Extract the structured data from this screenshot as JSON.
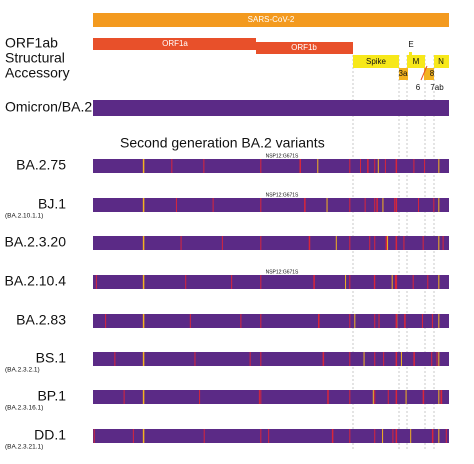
{
  "header": {
    "genome": "SARS-CoV-2"
  },
  "track_labels": [
    "ORF1ab",
    "Structural",
    "Accessory"
  ],
  "genes": {
    "orf1a": "ORF1a",
    "orf1b": "ORF1b",
    "spike": "Spike",
    "e": "E",
    "m": "M",
    "n": "N",
    "a3": "3a",
    "a6": "6",
    "a7": "7ab",
    "a8": "8"
  },
  "reference": "Omicron/BA.2",
  "section_title": "Second generation BA.2 variants",
  "rows": [
    {
      "label": "BA.2.75",
      "note": "NSP12:G671S"
    },
    {
      "label": "BJ.1",
      "sublabel": "(BA.2.10.1.1)",
      "note": "NSP12:G671S"
    },
    {
      "label": "BA.2.3.20"
    },
    {
      "label": "BA.2.10.4",
      "note": "NSP12:G671S"
    },
    {
      "label": "BA.2.83"
    },
    {
      "label": "BS.1",
      "sublabel": "(BA.2.3.2.1)"
    },
    {
      "label": "BP.1",
      "sublabel": "(BA.2.3.16.1)"
    },
    {
      "label": "DD.1",
      "sublabel": "(BA.2.3.21.1)"
    }
  ]
}
